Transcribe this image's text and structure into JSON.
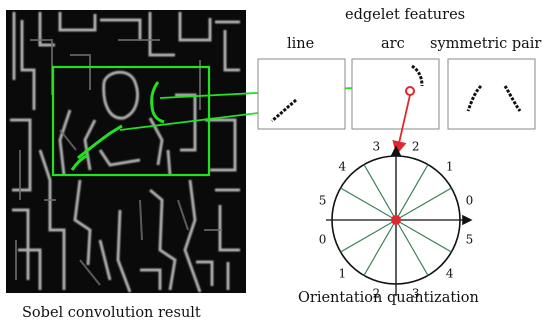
{
  "figure": {
    "edgelet_title": "edgelet features",
    "feature_labels": [
      "line",
      "arc",
      "symmetric pair"
    ],
    "left_caption": "Sobel convolution result",
    "right_caption": "Orientation quantization"
  },
  "dial": {
    "bins": [
      "3",
      "2",
      "1",
      "0",
      "5",
      "4",
      "3",
      "2",
      "1",
      "0",
      "5",
      "4"
    ]
  },
  "colors": {
    "green": "#22e022",
    "red": "#e0282e",
    "dial_lines": "#2e7d4e",
    "panel_border": "#8a8a8a"
  }
}
